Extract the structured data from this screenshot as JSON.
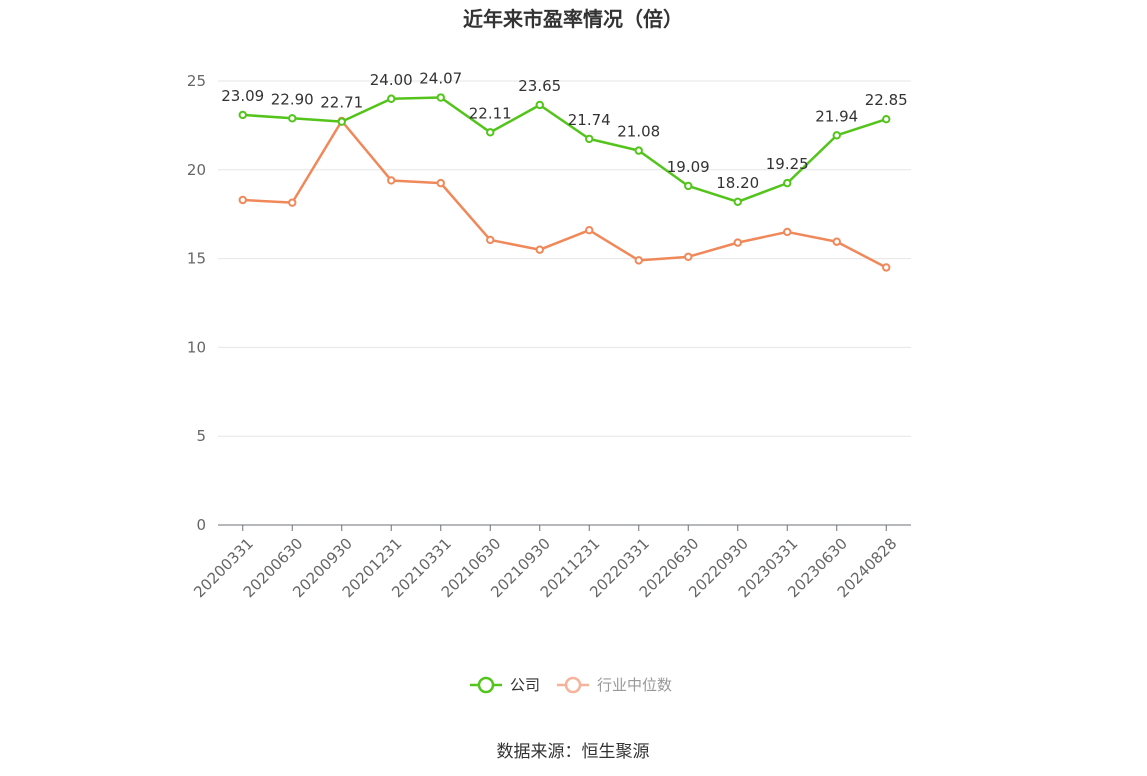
{
  "chart_data": {
    "type": "line",
    "title": "近年来市盈率情况（倍）",
    "categories": [
      "20200331",
      "20200630",
      "20200930",
      "20201231",
      "20210331",
      "20210630",
      "20210930",
      "20211231",
      "20220331",
      "20220630",
      "20220930",
      "20230331",
      "20230630",
      "20240828"
    ],
    "ylim": [
      0,
      25
    ],
    "yticks": [
      "0",
      "5",
      "10",
      "15",
      "20",
      "25"
    ],
    "grid": true,
    "legend_position": "bottom",
    "series": [
      {
        "name": "公司",
        "color": "#52c41a",
        "values": [
          23.09,
          22.9,
          22.71,
          24.0,
          24.07,
          22.11,
          23.65,
          21.74,
          21.08,
          19.09,
          18.2,
          19.25,
          21.94,
          22.85
        ],
        "labels": [
          "23.09",
          "22.90",
          "22.71",
          "24.00",
          "24.07",
          "22.11",
          "23.65",
          "21.74",
          "21.08",
          "19.09",
          "18.20",
          "19.25",
          "21.94",
          "22.85"
        ]
      },
      {
        "name": "行业中位数",
        "color": "#f0885a",
        "values": [
          18.3,
          18.15,
          22.75,
          19.4,
          19.25,
          16.05,
          15.5,
          16.6,
          14.9,
          15.1,
          15.9,
          16.5,
          15.95,
          14.5
        ]
      }
    ],
    "source": "数据来源：恒生聚源"
  }
}
